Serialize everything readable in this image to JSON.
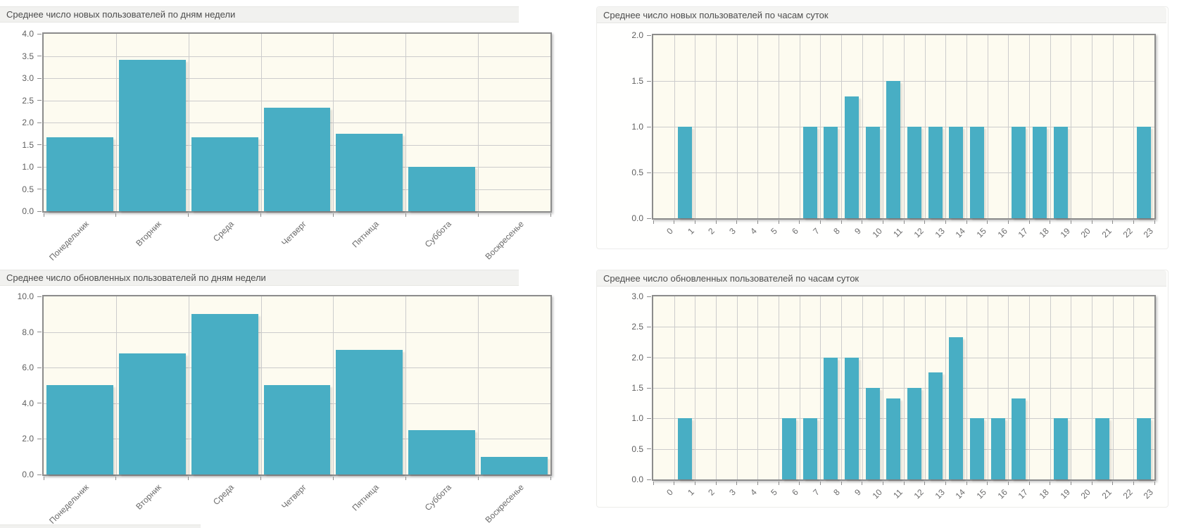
{
  "theme": {
    "bar_color": "#48aec4",
    "plot_bg": "#fdfbf0",
    "grid_color": "#cccccc",
    "plot_border": "#8c8c8c",
    "title_bg": "#f1f1ef",
    "title_color": "#4c4c4c",
    "tick_color": "#5f5f5f",
    "label_color": "#6b6b6b",
    "page_bg": "#ffffff"
  },
  "chart_data": [
    {
      "type": "bar",
      "title": "Среднее число новых пользователей по дням недели",
      "categories": [
        "Понедельник",
        "Вторник",
        "Среда",
        "Четверг",
        "Пятница",
        "Суббота",
        "Воскресенье"
      ],
      "values": [
        1.67,
        3.42,
        1.67,
        2.33,
        1.75,
        1.0,
        0
      ],
      "ylim": [
        0,
        4.0
      ],
      "ytick_step": 0.5,
      "xlabel": "",
      "ylabel": "",
      "grid": true,
      "legend": "none"
    },
    {
      "type": "bar",
      "title": "Среднее число новых пользователей по часам суток",
      "categories": [
        "0",
        "1",
        "2",
        "3",
        "4",
        "5",
        "6",
        "7",
        "8",
        "9",
        "10",
        "11",
        "12",
        "13",
        "14",
        "15",
        "16",
        "17",
        "18",
        "19",
        "20",
        "21",
        "22",
        "23"
      ],
      "values": [
        0,
        1,
        0,
        0,
        0,
        0,
        0,
        1,
        1,
        1.33,
        1,
        1.5,
        1,
        1,
        1,
        1,
        0,
        1,
        1,
        1,
        0,
        0,
        0,
        1
      ],
      "ylim": [
        0,
        2.0
      ],
      "ytick_step": 0.5,
      "xlabel": "",
      "ylabel": "",
      "grid": true,
      "legend": "none"
    },
    {
      "type": "bar",
      "title": "Среднее число обновленных пользователей по дням недели",
      "categories": [
        "Понедельник",
        "Вторник",
        "Среда",
        "Четверг",
        "Пятница",
        "Суббота",
        "Воскресенье"
      ],
      "values": [
        5.0,
        6.8,
        9.0,
        5.0,
        7.0,
        2.5,
        1.0
      ],
      "ylim": [
        0,
        10.0
      ],
      "ytick_step": 2.0,
      "xlabel": "",
      "ylabel": "",
      "grid": true,
      "legend": "none"
    },
    {
      "type": "bar",
      "title": "Среднее число обновленных пользователей по часам суток",
      "categories": [
        "0",
        "1",
        "2",
        "3",
        "4",
        "5",
        "6",
        "7",
        "8",
        "9",
        "10",
        "11",
        "12",
        "13",
        "14",
        "15",
        "16",
        "17",
        "18",
        "19",
        "20",
        "21",
        "22",
        "23"
      ],
      "values": [
        0,
        1,
        0,
        0,
        0,
        0,
        1,
        1,
        2,
        2,
        1.5,
        1.33,
        1.5,
        1.75,
        2.33,
        1,
        1,
        1.33,
        0,
        1,
        0,
        1,
        0,
        1
      ],
      "ylim": [
        0,
        3.0
      ],
      "ytick_step": 0.5,
      "xlabel": "",
      "ylabel": "",
      "grid": true,
      "legend": "none"
    }
  ]
}
